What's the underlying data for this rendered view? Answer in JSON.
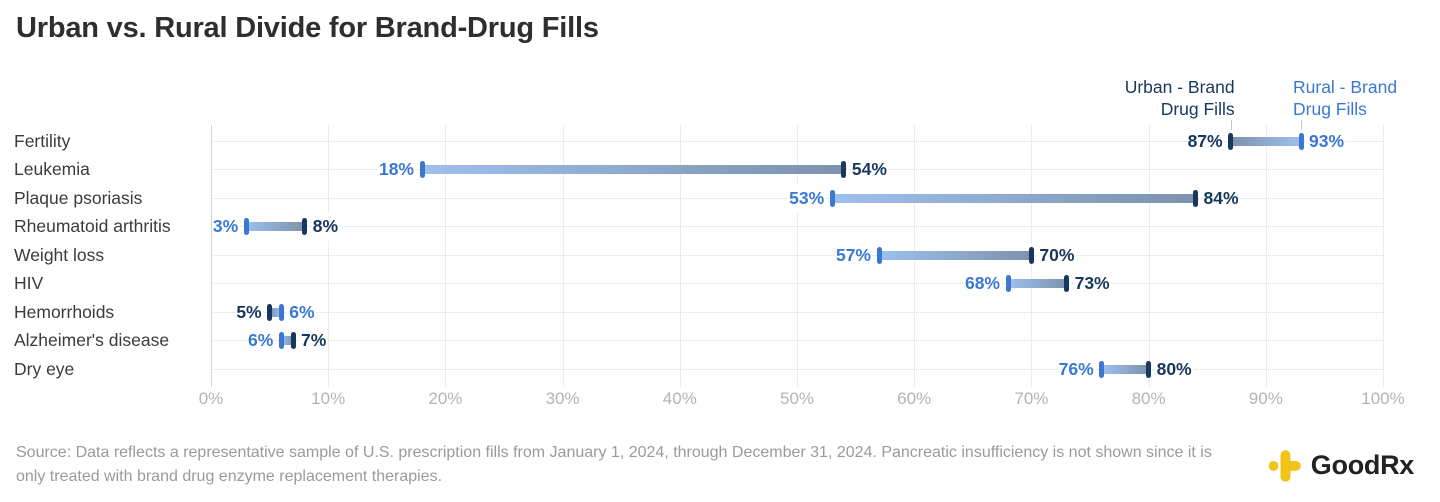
{
  "title": "Urban vs. Rural Divide for Brand-Drug Fills",
  "legend": {
    "urban": {
      "line1": "Urban - Brand",
      "line2": "Drug Fills"
    },
    "rural": {
      "line1": "Rural - Brand",
      "line2": "Drug Fills"
    }
  },
  "chart_data": {
    "type": "dumbbell",
    "unit": "%",
    "categories": [
      "Fertility",
      "Leukemia",
      "Plaque psoriasis",
      "Rheumatoid arthritis",
      "Weight loss",
      "HIV",
      "Hemorrhoids",
      "Alzheimer's disease",
      "Dry eye"
    ],
    "series": [
      {
        "name": "Urban - Brand Drug Fills",
        "color": "#17375e",
        "values": [
          87,
          54,
          84,
          8,
          70,
          73,
          5,
          7,
          80
        ]
      },
      {
        "name": "Rural - Brand Drug Fills",
        "color": "#3a78d4",
        "values": [
          93,
          18,
          53,
          3,
          57,
          68,
          6,
          6,
          76
        ]
      }
    ],
    "xlim": [
      0,
      100
    ],
    "x_ticks": [
      "0%",
      "10%",
      "20%",
      "30%",
      "40%",
      "50%",
      "60%",
      "70%",
      "80%",
      "90%",
      "100%"
    ],
    "grid": true,
    "legend_position": "top-right"
  },
  "colors": {
    "urban": "#17375e",
    "urban_bar_light": "#7d92ac",
    "rural": "#3a78d4",
    "rural_bar_light": "#9dc0ee",
    "gridline": "#ededed",
    "axis_text": "#b3b3b3",
    "logo_yellow": "#F2C318"
  },
  "footer": {
    "source": "Source: Data reflects a representative sample of U.S. prescription fills from January 1, 2024, through December 31, 2024. Pancreatic insufficiency is not shown since it is only treated with brand drug enzyme replacement therapies.",
    "logo_text": "GoodRx"
  }
}
